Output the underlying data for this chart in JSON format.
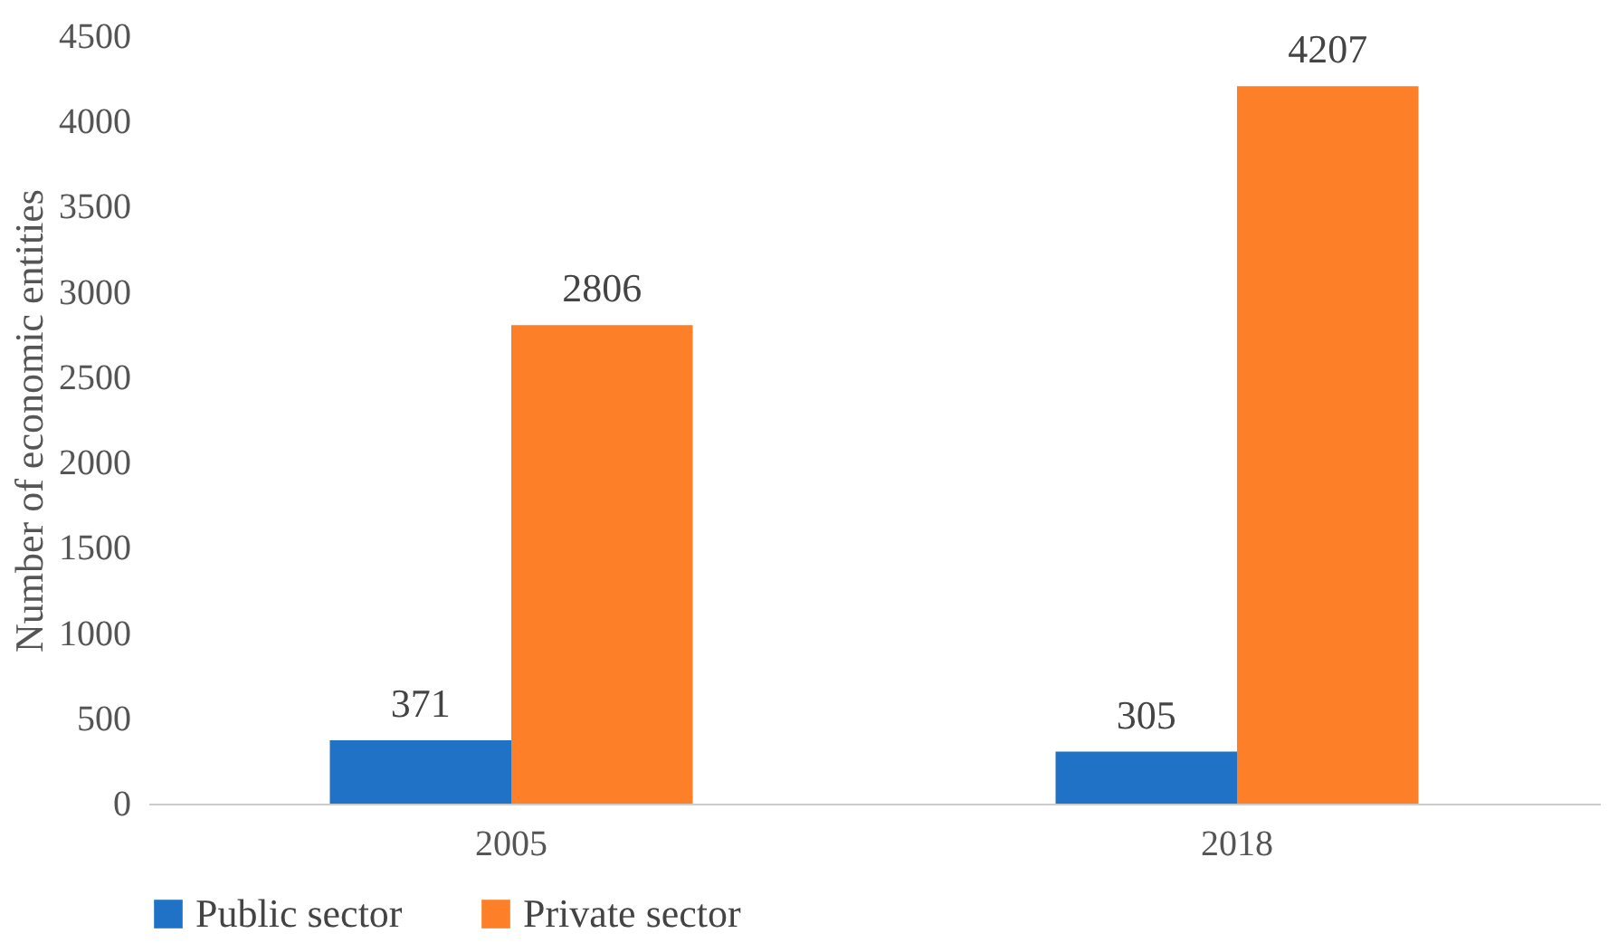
{
  "chart_data": {
    "type": "bar",
    "ylabel": "Number of economic entities",
    "categories": [
      "2005",
      "2018"
    ],
    "series": [
      {
        "name": "Public sector",
        "color": "#1f72c6",
        "values": [
          371,
          305
        ]
      },
      {
        "name": "Private sector",
        "color": "#fd7f27",
        "values": [
          2806,
          4207
        ]
      }
    ],
    "ylim": [
      0,
      4500
    ],
    "yticks": [
      0,
      500,
      1000,
      1500,
      2000,
      2500,
      3000,
      3500,
      4000,
      4500
    ],
    "grid": false,
    "legend": "bottom",
    "data_labels": true
  }
}
